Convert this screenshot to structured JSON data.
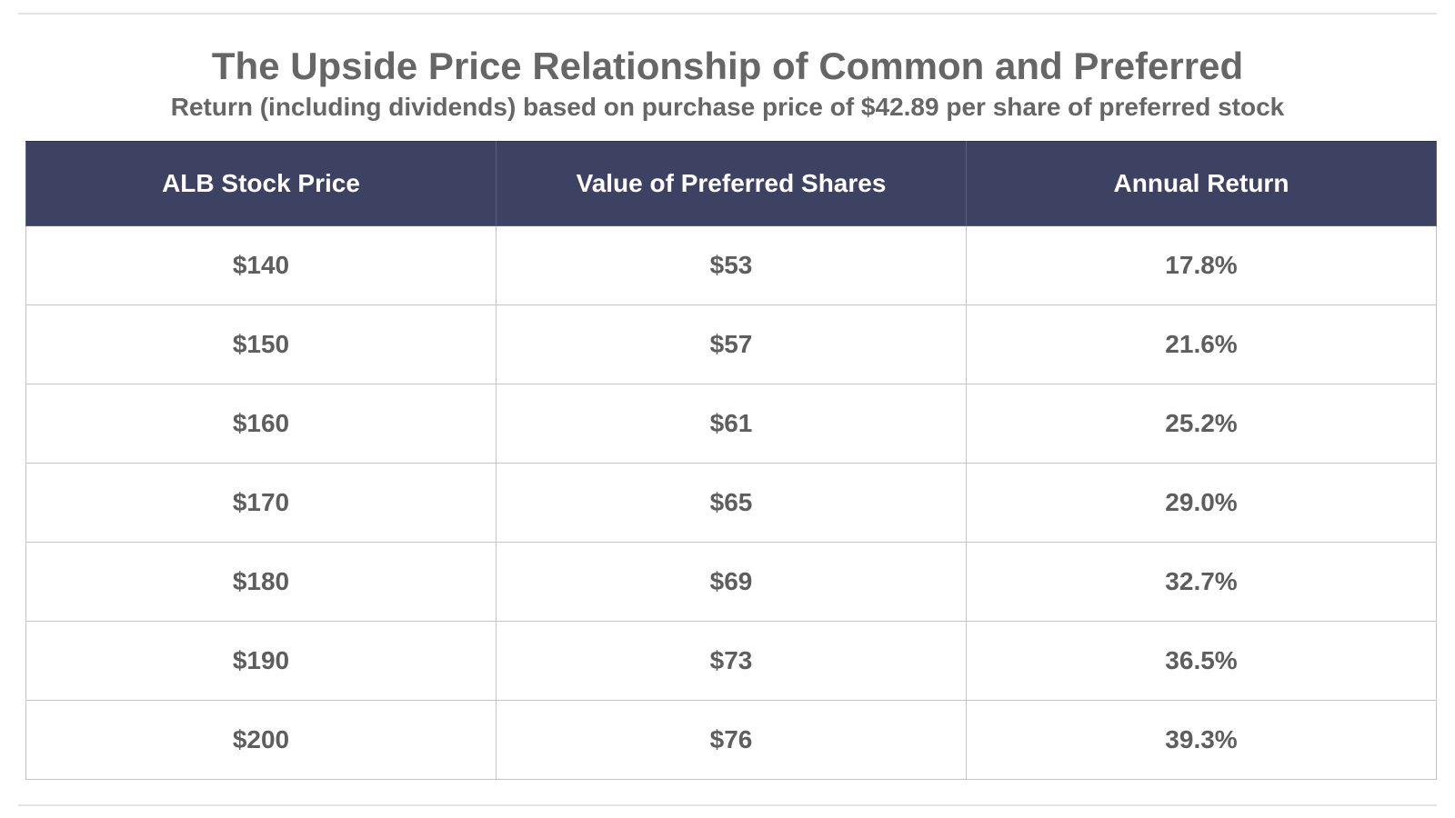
{
  "title": "The Upside Price Relationship of Common and Preferred",
  "subtitle": "Return (including dividends) based on purchase price of $42.89 per share of preferred stock",
  "colors": {
    "header_bg": "#3d4262",
    "header_text": "#ffffff",
    "body_text": "#5e5e5e",
    "title_text": "#666666"
  },
  "table": {
    "headers": [
      "ALB Stock Price",
      "Value of Preferred Shares",
      "Annual Return"
    ],
    "rows": [
      [
        "$140",
        "$53",
        "17.8%"
      ],
      [
        "$150",
        "$57",
        "21.6%"
      ],
      [
        "$160",
        "$61",
        "25.2%"
      ],
      [
        "$170",
        "$65",
        "29.0%"
      ],
      [
        "$180",
        "$69",
        "32.7%"
      ],
      [
        "$190",
        "$73",
        "36.5%"
      ],
      [
        "$200",
        "$76",
        "39.3%"
      ]
    ]
  }
}
